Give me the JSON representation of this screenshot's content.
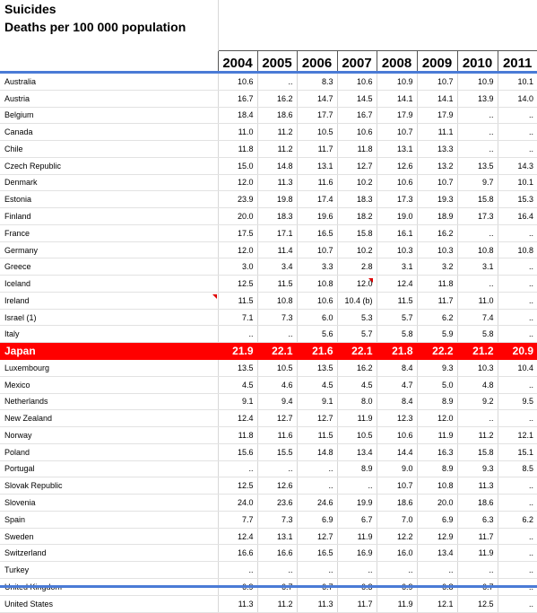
{
  "title": "Suicides",
  "subtitle": "Deaths per 100 000 population",
  "years": [
    "2004",
    "2005",
    "2006",
    "2007",
    "2008",
    "2009",
    "2010",
    "2011"
  ],
  "highlight_color": "#ff0000",
  "rows": [
    {
      "country": "Australia",
      "values": [
        "10.6",
        "..",
        "8.3",
        "10.6",
        "10.9",
        "10.7",
        "10.9",
        "10.1"
      ]
    },
    {
      "country": "Austria",
      "values": [
        "16.7",
        "16.2",
        "14.7",
        "14.5",
        "14.1",
        "14.1",
        "13.9",
        "14.0"
      ]
    },
    {
      "country": "Belgium",
      "values": [
        "18.4",
        "18.6",
        "17.7",
        "16.7",
        "17.9",
        "17.9",
        "..",
        ".."
      ]
    },
    {
      "country": "Canada",
      "values": [
        "11.0",
        "11.2",
        "10.5",
        "10.6",
        "10.7",
        "11.1",
        "..",
        ".."
      ]
    },
    {
      "country": "Chile",
      "values": [
        "11.8",
        "11.2",
        "11.7",
        "11.8",
        "13.1",
        "13.3",
        "..",
        ".."
      ]
    },
    {
      "country": "Czech Republic",
      "values": [
        "15.0",
        "14.8",
        "13.1",
        "12.7",
        "12.6",
        "13.2",
        "13.5",
        "14.3"
      ]
    },
    {
      "country": "Denmark",
      "values": [
        "12.0",
        "11.3",
        "11.6",
        "10.2",
        "10.6",
        "10.7",
        "9.7",
        "10.1"
      ]
    },
    {
      "country": "Estonia",
      "values": [
        "23.9",
        "19.8",
        "17.4",
        "18.3",
        "17.3",
        "19.3",
        "15.8",
        "15.3"
      ]
    },
    {
      "country": "Finland",
      "values": [
        "20.0",
        "18.3",
        "19.6",
        "18.2",
        "19.0",
        "18.9",
        "17.3",
        "16.4"
      ]
    },
    {
      "country": "France",
      "values": [
        "17.5",
        "17.1",
        "16.5",
        "15.8",
        "16.1",
        "16.2",
        "..",
        ".."
      ]
    },
    {
      "country": "Germany",
      "values": [
        "12.0",
        "11.4",
        "10.7",
        "10.2",
        "10.3",
        "10.3",
        "10.8",
        "10.8"
      ]
    },
    {
      "country": "Greece",
      "values": [
        "3.0",
        "3.4",
        "3.3",
        "2.8",
        "3.1",
        "3.2",
        "3.1",
        ".."
      ]
    },
    {
      "country": "Iceland",
      "values": [
        "12.5",
        "11.5",
        "10.8",
        "12.0",
        "12.4",
        "11.8",
        "..",
        ".."
      ]
    },
    {
      "country": "Ireland",
      "values": [
        "11.5",
        "10.8",
        "10.6",
        "10.4 (b)",
        "11.5",
        "11.7",
        "11.0",
        ".."
      ]
    },
    {
      "country": "Israel  (1)",
      "values": [
        "7.1",
        "7.3",
        "6.0",
        "5.3",
        "5.7",
        "6.2",
        "7.4",
        ".."
      ]
    },
    {
      "country": "Italy",
      "values": [
        "..",
        "..",
        "5.6",
        "5.7",
        "5.8",
        "5.9",
        "5.8",
        ".."
      ]
    },
    {
      "country": "Japan",
      "highlight": true,
      "values": [
        "21.9",
        "22.1",
        "21.6",
        "22.1",
        "21.8",
        "22.2",
        "21.2",
        "20.9"
      ]
    },
    {
      "country": "Luxembourg",
      "values": [
        "13.5",
        "10.5",
        "13.5",
        "16.2",
        "8.4",
        "9.3",
        "10.3",
        "10.4"
      ]
    },
    {
      "country": "Mexico",
      "values": [
        "4.5",
        "4.6",
        "4.5",
        "4.5",
        "4.7",
        "5.0",
        "4.8",
        ".."
      ]
    },
    {
      "country": "Netherlands",
      "values": [
        "9.1",
        "9.4",
        "9.1",
        "8.0",
        "8.4",
        "8.9",
        "9.2",
        "9.5"
      ]
    },
    {
      "country": "New Zealand",
      "values": [
        "12.4",
        "12.7",
        "12.7",
        "11.9",
        "12.3",
        "12.0",
        "..",
        ".."
      ]
    },
    {
      "country": "Norway",
      "values": [
        "11.8",
        "11.6",
        "11.5",
        "10.5",
        "10.6",
        "11.9",
        "11.2",
        "12.1"
      ]
    },
    {
      "country": "Poland",
      "values": [
        "15.6",
        "15.5",
        "14.8",
        "13.4",
        "14.4",
        "16.3",
        "15.8",
        "15.1"
      ]
    },
    {
      "country": "Portugal",
      "values": [
        "..",
        "..",
        "..",
        "8.9",
        "9.0",
        "8.9",
        "9.3",
        "8.5"
      ]
    },
    {
      "country": "Slovak Republic",
      "values": [
        "12.5",
        "12.6",
        "..",
        "..",
        "10.7",
        "10.8",
        "11.3",
        ".."
      ]
    },
    {
      "country": "Slovenia",
      "values": [
        "24.0",
        "23.6",
        "24.6",
        "19.9",
        "18.6",
        "20.0",
        "18.6",
        ".."
      ]
    },
    {
      "country": "Spain",
      "values": [
        "7.7",
        "7.3",
        "6.9",
        "6.7",
        "7.0",
        "6.9",
        "6.3",
        "6.2"
      ]
    },
    {
      "country": "Sweden",
      "values": [
        "12.4",
        "13.1",
        "12.7",
        "11.9",
        "12.2",
        "12.9",
        "11.7",
        ".."
      ]
    },
    {
      "country": "Switzerland",
      "values": [
        "16.6",
        "16.6",
        "16.5",
        "16.9",
        "16.0",
        "13.4",
        "11.9",
        ".."
      ]
    },
    {
      "country": "Turkey",
      "values": [
        "..",
        "..",
        "..",
        "..",
        "..",
        "..",
        "..",
        ".."
      ]
    },
    {
      "country": "United Kingdom",
      "values": [
        "6.9",
        "6.7",
        "6.7",
        "6.3",
        "6.9",
        "6.8",
        "6.7",
        ".."
      ]
    },
    {
      "country": "United States",
      "values": [
        "11.3",
        "11.2",
        "11.3",
        "11.7",
        "11.9",
        "12.1",
        "12.5",
        ".."
      ]
    }
  ]
}
